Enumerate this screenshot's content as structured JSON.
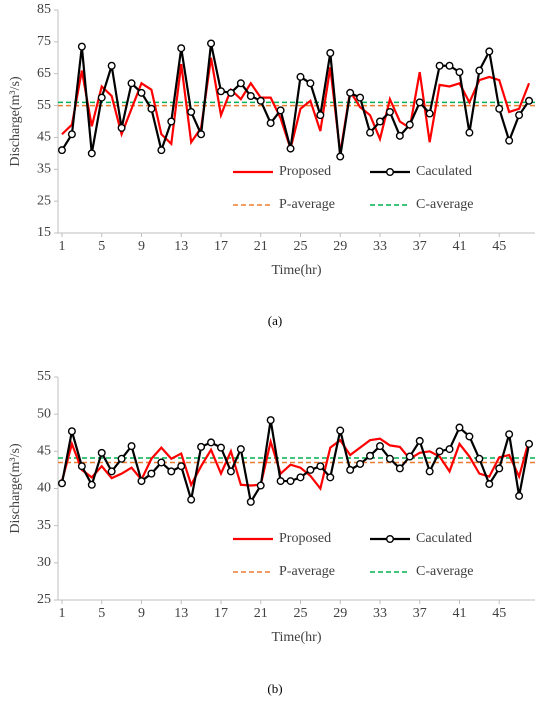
{
  "chart_data": [
    {
      "type": "line",
      "caption": "(a)",
      "xlabel": "Time(hr)",
      "ylabel": "Discharge(m³/s)",
      "x": [
        1,
        2,
        3,
        4,
        5,
        6,
        7,
        8,
        9,
        10,
        11,
        12,
        13,
        14,
        15,
        16,
        17,
        18,
        19,
        20,
        21,
        22,
        23,
        24,
        25,
        26,
        27,
        28,
        29,
        30,
        31,
        32,
        33,
        34,
        35,
        36,
        37,
        38,
        39,
        40,
        41,
        42,
        43,
        44,
        45,
        46,
        47,
        48
      ],
      "xlim": [
        0.6,
        48.6
      ],
      "xticks": [
        1,
        5,
        9,
        13,
        17,
        21,
        25,
        29,
        33,
        37,
        41,
        45
      ],
      "ylim": [
        15,
        85
      ],
      "yticks": [
        15,
        25,
        35,
        45,
        55,
        65,
        75,
        85
      ],
      "series": [
        {
          "name": "Proposed",
          "color": "#ff0000",
          "markers": false,
          "values": [
            46,
            49,
            66,
            48.5,
            61,
            58,
            46,
            54,
            62,
            60,
            46,
            43,
            68,
            43.5,
            48,
            70,
            52,
            60,
            57,
            62,
            57.5,
            57.5,
            51,
            41.5,
            54,
            56.5,
            47,
            67,
            40,
            59.5,
            54.5,
            52,
            44.5,
            57,
            50,
            48,
            65.5,
            43.5,
            61.5,
            61,
            62,
            56,
            63,
            64,
            63,
            53,
            54,
            62
          ]
        },
        {
          "name": "Caculated",
          "color": "#000000",
          "markers": true,
          "values": [
            41,
            46,
            73.5,
            40,
            57.5,
            67.5,
            48,
            62,
            59,
            54,
            41,
            50,
            73,
            53,
            46,
            74.5,
            59.5,
            59,
            62,
            58,
            56.5,
            49.5,
            53.5,
            41.5,
            64,
            62,
            52,
            71.5,
            39,
            59,
            57.5,
            46.5,
            50,
            53,
            45.5,
            49,
            56,
            52.5,
            67.5,
            67.5,
            65.5,
            46.5,
            66,
            72,
            54,
            44,
            52,
            56.5
          ]
        }
      ],
      "reference_lines": [
        {
          "name": "P-average",
          "color": "#ed7d31",
          "value": 55
        },
        {
          "name": "C-average",
          "color": "#00b050",
          "value": 56
        }
      ]
    },
    {
      "type": "line",
      "caption": "(b)",
      "xlabel": "Time(hr)",
      "ylabel": "Discharge(m³/s)",
      "x": [
        1,
        2,
        3,
        4,
        5,
        6,
        7,
        8,
        9,
        10,
        11,
        12,
        13,
        14,
        15,
        16,
        17,
        18,
        19,
        20,
        21,
        22,
        23,
        24,
        25,
        26,
        27,
        28,
        29,
        30,
        31,
        32,
        33,
        34,
        35,
        36,
        37,
        38,
        39,
        40,
        41,
        42,
        43,
        44,
        45,
        46,
        47,
        48
      ],
      "xlim": [
        0.6,
        48.6
      ],
      "xticks": [
        1,
        5,
        9,
        13,
        17,
        21,
        25,
        29,
        33,
        37,
        41,
        45
      ],
      "ylim": [
        25,
        55
      ],
      "yticks": [
        25,
        30,
        35,
        40,
        45,
        50,
        55
      ],
      "series": [
        {
          "name": "Proposed",
          "color": "#ff0000",
          "markers": false,
          "values": [
            41,
            46,
            42.5,
            41.5,
            43,
            41.4,
            42,
            42.8,
            41.2,
            44,
            45.5,
            44,
            44.7,
            40.5,
            43,
            45.2,
            42,
            45,
            40.5,
            40.4,
            40.5,
            46.3,
            42,
            43.2,
            42.8,
            41.7,
            40,
            45.5,
            46.5,
            44.5,
            45.5,
            46.5,
            46.7,
            45.8,
            45.6,
            44,
            44.8,
            45,
            44.3,
            42.3,
            46,
            44.3,
            42,
            41.6,
            44.2,
            44.5,
            41.6,
            46.5
          ]
        },
        {
          "name": "Caculated",
          "color": "#000000",
          "markers": true,
          "values": [
            40.7,
            47.7,
            43,
            40.5,
            44.8,
            42.3,
            44,
            45.7,
            41,
            42,
            43.5,
            42.3,
            43,
            38.5,
            45.6,
            46.2,
            45.5,
            42.3,
            45.3,
            38.2,
            40.4,
            49.2,
            41,
            41,
            41.5,
            42.5,
            43,
            41.5,
            47.8,
            42.5,
            43.3,
            44.4,
            45.7,
            44,
            42.7,
            44.3,
            46.4,
            42.3,
            45,
            45.3,
            48.2,
            47,
            44,
            40.6,
            42.7,
            47.3,
            39,
            46
          ]
        }
      ],
      "reference_lines": [
        {
          "name": "P-average",
          "color": "#ed7d31",
          "value": 43.5
        },
        {
          "name": "C-average",
          "color": "#00b050",
          "value": 44.1
        }
      ]
    }
  ]
}
